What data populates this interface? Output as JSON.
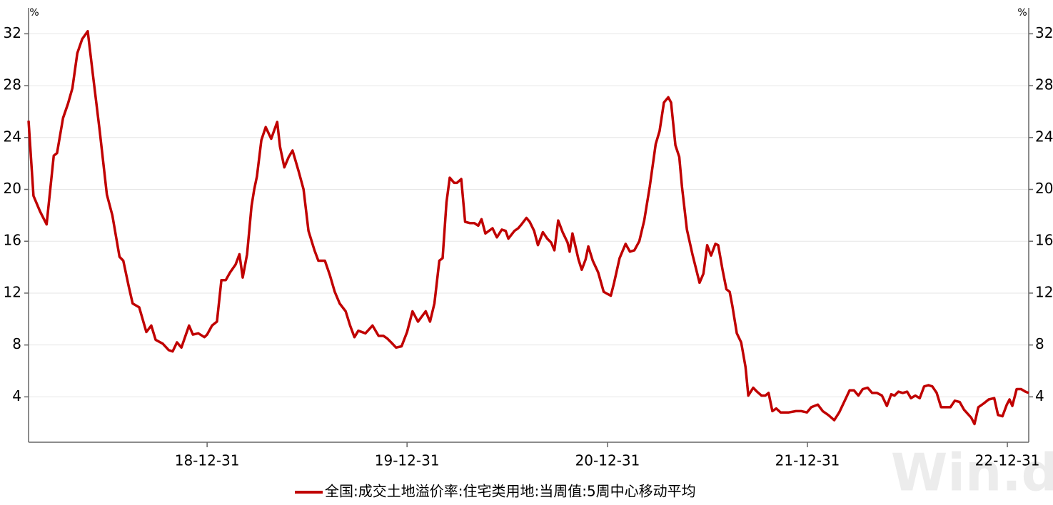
{
  "chart_data": {
    "type": "line",
    "ylabel": "%",
    "y2label": "%",
    "watermark": "Win.d",
    "x": [
      "2018-02-08",
      "2018-02-17",
      "2018-03-01",
      "2018-03-13",
      "2018-03-26",
      "2018-04-01",
      "2018-04-12",
      "2018-04-21",
      "2018-04-29",
      "2018-05-08",
      "2018-05-17",
      "2018-05-27",
      "2018-06-05",
      "2018-06-18",
      "2018-07-01",
      "2018-07-11",
      "2018-07-24",
      "2018-07-31",
      "2018-08-10",
      "2018-08-17",
      "2018-08-29",
      "2018-09-11",
      "2018-09-20",
      "2018-09-28",
      "2018-10-11",
      "2018-10-22",
      "2018-10-29",
      "2018-11-06",
      "2018-11-14",
      "2018-11-28",
      "2018-12-05",
      "2018-12-15",
      "2018-12-26",
      "2018-12-31",
      "2019-01-09",
      "2019-01-18",
      "2019-01-26",
      "2019-02-03",
      "2019-02-11",
      "2019-02-21",
      "2019-02-28",
      "2019-03-06",
      "2019-03-14",
      "2019-03-22",
      "2019-03-27",
      "2019-04-01",
      "2019-04-09",
      "2019-04-17",
      "2019-04-27",
      "2019-05-08",
      "2019-05-13",
      "2019-05-21",
      "2019-05-29",
      "2019-06-05",
      "2019-06-16",
      "2019-06-25",
      "2019-07-04",
      "2019-07-15",
      "2019-07-22",
      "2019-08-03",
      "2019-08-12",
      "2019-08-21",
      "2019-08-30",
      "2019-09-10",
      "2019-09-18",
      "2019-09-26",
      "2019-10-03",
      "2019-10-16",
      "2019-10-29",
      "2019-11-09",
      "2019-11-18",
      "2019-11-25",
      "2019-12-02",
      "2019-12-11",
      "2019-12-21",
      "2019-12-31",
      "2020-01-10",
      "2020-01-20",
      "2020-02-03",
      "2020-02-11",
      "2020-02-19",
      "2020-02-28",
      "2020-03-05",
      "2020-03-12",
      "2020-03-18",
      "2020-03-26",
      "2020-03-31",
      "2020-04-08",
      "2020-04-15",
      "2020-04-24",
      "2020-05-02",
      "2020-05-09",
      "2020-05-15",
      "2020-05-22",
      "2020-06-04",
      "2020-06-12",
      "2020-06-21",
      "2020-06-28",
      "2020-07-03",
      "2020-07-14",
      "2020-07-21",
      "2020-07-27",
      "2020-08-05",
      "2020-08-11",
      "2020-08-19",
      "2020-08-26",
      "2020-09-04",
      "2020-09-12",
      "2020-09-19",
      "2020-09-25",
      "2020-10-02",
      "2020-10-10",
      "2020-10-19",
      "2020-10-23",
      "2020-10-28",
      "2020-11-08",
      "2020-11-14",
      "2020-11-21",
      "2020-11-26",
      "2020-12-04",
      "2020-12-14",
      "2020-12-24",
      "2021-01-06",
      "2021-01-12",
      "2021-01-22",
      "2021-02-02",
      "2021-02-10",
      "2021-02-18",
      "2021-02-27",
      "2021-03-08",
      "2021-03-18",
      "2021-03-29",
      "2021-04-05",
      "2021-04-13",
      "2021-04-21",
      "2021-04-26",
      "2021-05-04",
      "2021-05-11",
      "2021-05-16",
      "2021-05-25",
      "2021-06-04",
      "2021-06-17",
      "2021-06-24",
      "2021-07-01",
      "2021-07-08",
      "2021-07-16",
      "2021-07-21",
      "2021-07-29",
      "2021-08-05",
      "2021-08-11",
      "2021-08-16",
      "2021-08-24",
      "2021-09-01",
      "2021-09-09",
      "2021-09-14",
      "2021-09-23",
      "2021-09-30",
      "2021-10-08",
      "2021-10-15",
      "2021-10-21",
      "2021-10-28",
      "2021-11-04",
      "2021-11-12",
      "2021-11-27",
      "2021-12-10",
      "2021-12-20",
      "2021-12-30",
      "2022-01-07",
      "2022-01-19",
      "2022-01-28",
      "2022-02-07",
      "2022-02-18",
      "2022-02-27",
      "2022-03-08",
      "2022-03-18",
      "2022-03-26",
      "2022-04-03",
      "2022-04-11",
      "2022-04-20",
      "2022-04-28",
      "2022-05-07",
      "2022-05-16",
      "2022-05-25",
      "2022-06-02",
      "2022-06-08",
      "2022-06-15",
      "2022-06-23",
      "2022-07-01",
      "2022-07-08",
      "2022-07-16",
      "2022-07-24",
      "2022-08-01",
      "2022-08-09",
      "2022-08-16",
      "2022-08-24",
      "2022-09-01",
      "2022-09-09",
      "2022-09-18",
      "2022-09-26",
      "2022-10-05",
      "2022-10-13",
      "2022-10-26",
      "2022-11-01",
      "2022-11-08",
      "2022-11-18",
      "2022-11-27",
      "2022-12-07",
      "2022-12-14",
      "2022-12-22",
      "2022-12-30",
      "2023-01-04",
      "2023-01-09",
      "2023-01-17",
      "2023-01-25",
      "2023-02-02",
      "2023-02-08"
    ],
    "series": [
      {
        "name": "全国:成交土地溢价率:住宅类用地:当周值:5周中心移动平均",
        "color": "#c00000",
        "values": [
          25.3,
          19.5,
          18.3,
          17.3,
          22.6,
          22.8,
          25.5,
          26.6,
          27.8,
          30.5,
          31.6,
          32.2,
          29,
          24.5,
          19.6,
          18,
          14.8,
          14.5,
          12.5,
          11.2,
          10.9,
          9,
          9.5,
          8.4,
          8.1,
          7.6,
          7.5,
          8.2,
          7.8,
          9.5,
          8.8,
          8.9,
          8.6,
          8.8,
          9.5,
          9.8,
          13,
          13,
          13.6,
          14.2,
          15,
          13.2,
          15,
          18.7,
          20,
          21,
          23.8,
          24.8,
          23.9,
          25.2,
          23.3,
          21.7,
          22.5,
          23,
          21.4,
          20,
          16.8,
          15.3,
          14.5,
          14.5,
          13.4,
          12.1,
          11.2,
          10.6,
          9.5,
          8.6,
          9.1,
          8.9,
          9.5,
          8.7,
          8.7,
          8.5,
          8.2,
          7.8,
          7.9,
          9,
          10.6,
          9.8,
          10.6,
          9.8,
          11.2,
          14.5,
          14.7,
          19,
          20.9,
          20.5,
          20.5,
          20.8,
          17.5,
          17.4,
          17.4,
          17.2,
          17.7,
          16.6,
          17,
          16.3,
          16.9,
          16.8,
          16.2,
          16.8,
          17,
          17.3,
          17.8,
          17.5,
          16.8,
          15.7,
          16.7,
          16.2,
          15.9,
          15.3,
          17.6,
          16.7,
          15.9,
          15.2,
          16.6,
          14.6,
          13.8,
          14.6,
          15.6,
          14.5,
          13.6,
          12.1,
          11.8,
          12.8,
          14.7,
          15.8,
          15.2,
          15.3,
          16,
          17.6,
          20.2,
          23.5,
          24.5,
          26.7,
          27.1,
          26.7,
          23.4,
          22.5,
          20.2,
          16.9,
          15,
          12.8,
          13.5,
          15.7,
          14.9,
          15.8,
          15.7,
          13.8,
          12.3,
          12.1,
          11,
          8.9,
          8.2,
          6.3,
          4.1,
          4.7,
          4.4,
          4.1,
          4.1,
          4.3,
          2.9,
          3.1,
          2.8,
          2.8,
          2.9,
          2.9,
          2.8,
          3.2,
          3.4,
          2.9,
          2.6,
          2.2,
          2.8,
          3.6,
          4.5,
          4.5,
          4.1,
          4.6,
          4.7,
          4.3,
          4.3,
          4.1,
          3.3,
          4.2,
          4.1,
          4.4,
          4.3,
          4.4,
          3.9,
          4.1,
          3.9,
          4.8,
          4.9,
          4.8,
          4.3,
          3.2,
          3.2,
          3.2,
          3.7,
          3.6,
          3,
          2.4,
          1.9,
          3.2,
          3.5,
          3.8,
          3.9,
          2.6,
          2.5,
          3.4,
          3.8,
          3.3,
          4.6,
          4.6,
          4.4,
          4.3
        ]
      }
    ],
    "xlim": [
      "2018-02-08",
      "2023-02-08"
    ],
    "xticks": [
      {
        "value": "2018-12-31",
        "label": "18-12-31"
      },
      {
        "value": "2019-12-31",
        "label": "19-12-31"
      },
      {
        "value": "2020-12-31",
        "label": "20-12-31"
      },
      {
        "value": "2021-12-31",
        "label": "21-12-31"
      },
      {
        "value": "2022-12-31",
        "label": "22-12-31"
      }
    ],
    "ylim": [
      0.5,
      34
    ],
    "yticks": [
      4,
      8,
      12,
      16,
      20,
      24,
      28,
      32
    ],
    "y2lim": [
      0.5,
      34
    ],
    "y2ticks": [
      4,
      8,
      12,
      16,
      20,
      24,
      28,
      32
    ],
    "grid": true
  }
}
